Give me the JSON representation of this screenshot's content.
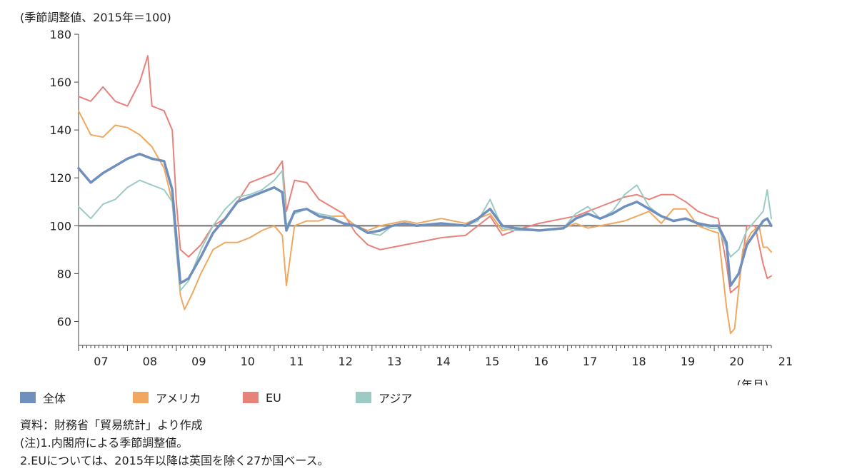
{
  "chart_data": {
    "type": "line",
    "title": "",
    "ylabel": "(季節調整値、2015年＝100)",
    "xlabel": "(年月)",
    "ylim": [
      50,
      180
    ],
    "yticks": [
      60,
      80,
      100,
      120,
      140,
      160,
      180
    ],
    "reference_line": 100,
    "grid": false,
    "legend_position": "bottom-left",
    "x_tick_labels": [
      "07",
      "08",
      "09",
      "10",
      "11",
      "12",
      "13",
      "14",
      "15",
      "16",
      "17",
      "18",
      "19",
      "20",
      "21"
    ],
    "x_start": "2007-01",
    "x_end": "2021-03",
    "series": [
      {
        "name": "全体",
        "color": "#6f8fbd",
        "x": [
          "2007-01",
          "2007-04",
          "2007-07",
          "2007-10",
          "2008-01",
          "2008-04",
          "2008-07",
          "2008-10",
          "2008-12",
          "2009-01",
          "2009-02",
          "2009-04",
          "2009-07",
          "2009-10",
          "2010-01",
          "2010-04",
          "2010-07",
          "2010-10",
          "2011-01",
          "2011-03",
          "2011-04",
          "2011-06",
          "2011-09",
          "2011-12",
          "2012-03",
          "2012-06",
          "2012-09",
          "2012-12",
          "2013-03",
          "2013-06",
          "2013-09",
          "2013-12",
          "2014-06",
          "2014-12",
          "2015-03",
          "2015-06",
          "2015-09",
          "2015-12",
          "2016-06",
          "2016-12",
          "2017-03",
          "2017-06",
          "2017-09",
          "2017-12",
          "2018-03",
          "2018-06",
          "2018-09",
          "2018-12",
          "2019-03",
          "2019-06",
          "2019-09",
          "2019-12",
          "2020-02",
          "2020-04",
          "2020-05",
          "2020-07",
          "2020-09",
          "2020-11",
          "2021-01",
          "2021-02",
          "2021-03"
        ],
        "values": [
          124,
          118,
          122,
          125,
          128,
          130,
          128,
          127,
          115,
          95,
          76,
          78,
          87,
          97,
          103,
          110,
          112,
          114,
          116,
          114,
          98,
          106,
          107,
          104,
          103,
          101,
          100,
          97,
          98,
          100,
          101,
          100,
          101,
          100,
          103,
          107,
          100,
          99,
          98,
          99,
          103,
          105,
          103,
          105,
          108,
          110,
          107,
          104,
          102,
          103,
          101,
          100,
          100,
          93,
          75,
          80,
          92,
          97,
          102,
          103,
          100
        ]
      },
      {
        "name": "アメリカ",
        "color": "#f0a860",
        "x": [
          "2007-01",
          "2007-04",
          "2007-07",
          "2007-10",
          "2008-01",
          "2008-04",
          "2008-07",
          "2008-10",
          "2008-12",
          "2009-01",
          "2009-02",
          "2009-03",
          "2009-05",
          "2009-07",
          "2009-10",
          "2010-01",
          "2010-04",
          "2010-07",
          "2010-10",
          "2011-01",
          "2011-03",
          "2011-04",
          "2011-06",
          "2011-09",
          "2011-12",
          "2012-03",
          "2012-06",
          "2012-09",
          "2012-12",
          "2013-03",
          "2013-06",
          "2013-09",
          "2013-12",
          "2014-06",
          "2014-12",
          "2015-03",
          "2015-06",
          "2015-09",
          "2015-12",
          "2016-06",
          "2016-12",
          "2017-03",
          "2017-06",
          "2017-09",
          "2017-12",
          "2018-03",
          "2018-06",
          "2018-09",
          "2018-12",
          "2019-03",
          "2019-06",
          "2019-09",
          "2019-12",
          "2020-02",
          "2020-04",
          "2020-05",
          "2020-06",
          "2020-08",
          "2020-10",
          "2020-12",
          "2021-01",
          "2021-02",
          "2021-03"
        ],
        "values": [
          148,
          138,
          137,
          142,
          141,
          138,
          133,
          124,
          110,
          90,
          71,
          65,
          72,
          80,
          90,
          93,
          93,
          95,
          98,
          100,
          96,
          75,
          100,
          102,
          102,
          104,
          104,
          100,
          98,
          100,
          101,
          102,
          101,
          103,
          101,
          103,
          105,
          98,
          99,
          98,
          99,
          101,
          99,
          100,
          101,
          102,
          104,
          106,
          101,
          107,
          107,
          100,
          98,
          97,
          66,
          55,
          57,
          90,
          97,
          100,
          91,
          91,
          89
        ]
      },
      {
        "name": "EU",
        "color": "#e7827a",
        "x": [
          "2007-01",
          "2007-04",
          "2007-07",
          "2007-10",
          "2008-01",
          "2008-04",
          "2008-06",
          "2008-07",
          "2008-10",
          "2008-12",
          "2009-01",
          "2009-02",
          "2009-04",
          "2009-07",
          "2009-10",
          "2010-01",
          "2010-04",
          "2010-07",
          "2010-10",
          "2011-01",
          "2011-03",
          "2011-04",
          "2011-06",
          "2011-09",
          "2011-12",
          "2012-03",
          "2012-06",
          "2012-09",
          "2012-12",
          "2013-03",
          "2013-06",
          "2013-09",
          "2013-12",
          "2014-06",
          "2014-12",
          "2015-03",
          "2015-06",
          "2015-09",
          "2015-12",
          "2016-06",
          "2016-12",
          "2017-03",
          "2017-06",
          "2017-09",
          "2017-12",
          "2018-03",
          "2018-06",
          "2018-09",
          "2018-12",
          "2019-03",
          "2019-06",
          "2019-09",
          "2019-12",
          "2020-02",
          "2020-04",
          "2020-05",
          "2020-07",
          "2020-09",
          "2020-11",
          "2021-01",
          "2021-02",
          "2021-03"
        ],
        "values": [
          154,
          152,
          158,
          152,
          150,
          160,
          171,
          150,
          148,
          140,
          110,
          90,
          87,
          92,
          100,
          103,
          110,
          118,
          120,
          122,
          127,
          106,
          119,
          118,
          111,
          108,
          105,
          97,
          92,
          90,
          91,
          92,
          93,
          95,
          96,
          100,
          104,
          96,
          98,
          101,
          103,
          104,
          106,
          108,
          110,
          112,
          113,
          111,
          113,
          113,
          110,
          106,
          104,
          103,
          84,
          72,
          75,
          100,
          100,
          84,
          78,
          79
        ]
      },
      {
        "name": "アジア",
        "color": "#9ccbc6",
        "x": [
          "2007-01",
          "2007-04",
          "2007-07",
          "2007-10",
          "2008-01",
          "2008-04",
          "2008-07",
          "2008-10",
          "2008-12",
          "2009-01",
          "2009-02",
          "2009-04",
          "2009-07",
          "2009-10",
          "2010-01",
          "2010-04",
          "2010-07",
          "2010-10",
          "2011-01",
          "2011-03",
          "2011-04",
          "2011-06",
          "2011-09",
          "2011-12",
          "2012-03",
          "2012-06",
          "2012-09",
          "2012-12",
          "2013-03",
          "2013-06",
          "2013-09",
          "2013-12",
          "2014-06",
          "2014-12",
          "2015-03",
          "2015-06",
          "2015-09",
          "2015-12",
          "2016-06",
          "2016-12",
          "2017-03",
          "2017-06",
          "2017-09",
          "2017-12",
          "2018-03",
          "2018-06",
          "2018-09",
          "2018-12",
          "2019-03",
          "2019-06",
          "2019-09",
          "2019-12",
          "2020-02",
          "2020-04",
          "2020-05",
          "2020-07",
          "2020-09",
          "2020-11",
          "2021-01",
          "2021-02",
          "2021-03"
        ],
        "values": [
          108,
          103,
          109,
          111,
          116,
          119,
          117,
          115,
          110,
          90,
          73,
          77,
          90,
          100,
          107,
          112,
          113,
          115,
          119,
          123,
          100,
          105,
          107,
          105,
          104,
          101,
          100,
          97,
          96,
          100,
          101,
          100,
          101,
          100,
          102,
          111,
          99,
          98,
          98,
          99,
          105,
          108,
          103,
          106,
          113,
          117,
          108,
          104,
          102,
          103,
          101,
          99,
          99,
          91,
          87,
          90,
          98,
          102,
          106,
          115,
          103
        ]
      }
    ]
  },
  "legend": [
    {
      "label": "全体",
      "color": "#6f8fbd"
    },
    {
      "label": "アメリカ",
      "color": "#f0a860"
    },
    {
      "label": "EU",
      "color": "#e7827a"
    },
    {
      "label": "アジア",
      "color": "#9ccbc6"
    }
  ],
  "notes": {
    "source": "資料：財務省「貿易統計」より作成",
    "note1": "(注)1.内閣府による季節調整値。",
    "note2": "2.EUについては、2015年以降は英国を除く27か国ベース。"
  }
}
